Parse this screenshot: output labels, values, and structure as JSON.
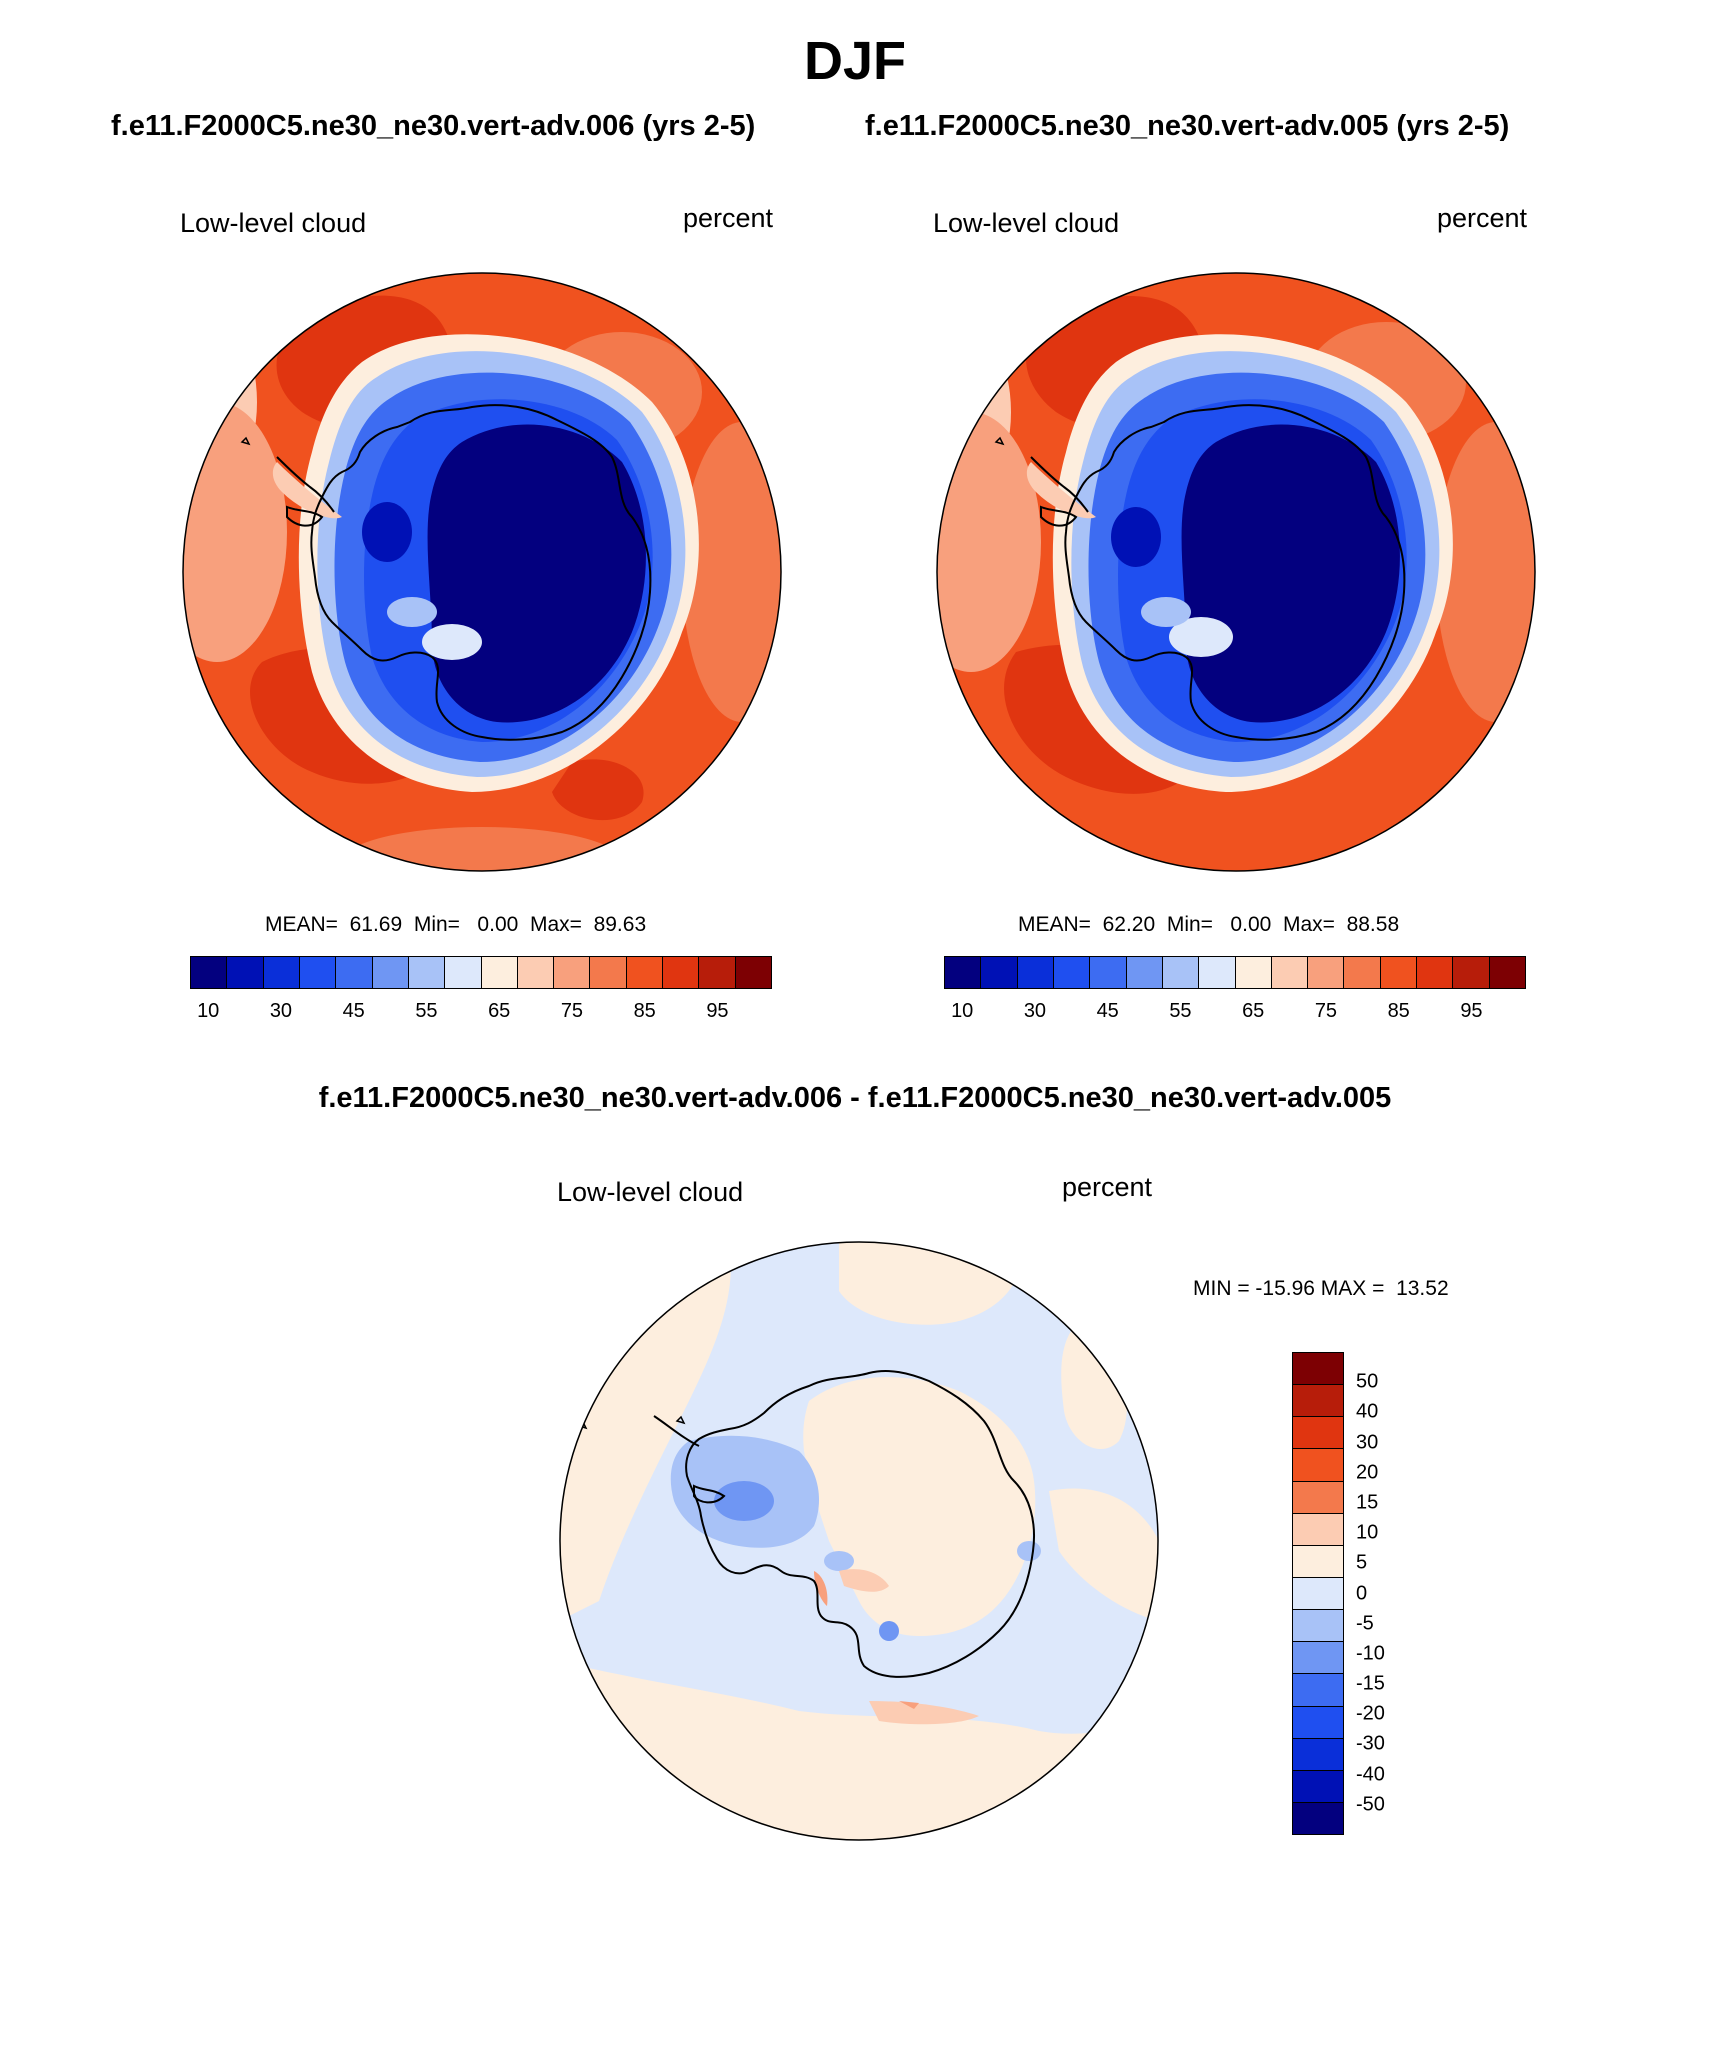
{
  "title": "DJF",
  "panels": [
    {
      "case": "f.e11.F2000C5.ne30_ne30.vert-adv.006 (yrs 2-5)",
      "variable": "Low-level cloud",
      "units": "percent",
      "stats": "MEAN=  61.69  Min=   0.00  Max=  89.63"
    },
    {
      "case": "f.e11.F2000C5.ne30_ne30.vert-adv.005 (yrs 2-5)",
      "variable": "Low-level cloud",
      "units": "percent",
      "stats": "MEAN=  62.20  Min=   0.00  Max=  88.58"
    }
  ],
  "difference": {
    "title": "f.e11.F2000C5.ne30_ne30.vert-adv.006 - f.e11.F2000C5.ne30_ne30.vert-adv.005",
    "variable": "Low-level cloud",
    "units": "percent",
    "stats": "MIN = -15.96 MAX =  13.52"
  },
  "colorbar_main": {
    "colors": [
      "#03007f",
      "#0011b5",
      "#0a2fd9",
      "#1f4ff0",
      "#3d6cf2",
      "#6f96f3",
      "#a8c2f7",
      "#dde8fb",
      "#fdeede",
      "#fcccb3",
      "#f8a07d",
      "#f3794c",
      "#f0521f",
      "#e03510",
      "#b71d0a",
      "#7d0003"
    ],
    "ticks": [
      "10",
      "30",
      "45",
      "55",
      "65",
      "75",
      "85",
      "95"
    ]
  },
  "colorbar_diff": {
    "colors": [
      "#7d0003",
      "#b71d0a",
      "#e03510",
      "#f0521f",
      "#f3794c",
      "#fcccb3",
      "#fdeede",
      "#dde8fb",
      "#a8c2f7",
      "#6f96f3",
      "#3d6cf2",
      "#1f4ff0",
      "#0a2fd9",
      "#0011b5",
      "#03007f"
    ],
    "ticks": [
      "50",
      "40",
      "30",
      "20",
      "15",
      "10",
      "5",
      "0",
      "-5",
      "-10",
      "-15",
      "-20",
      "-30",
      "-40",
      "-50"
    ]
  }
}
